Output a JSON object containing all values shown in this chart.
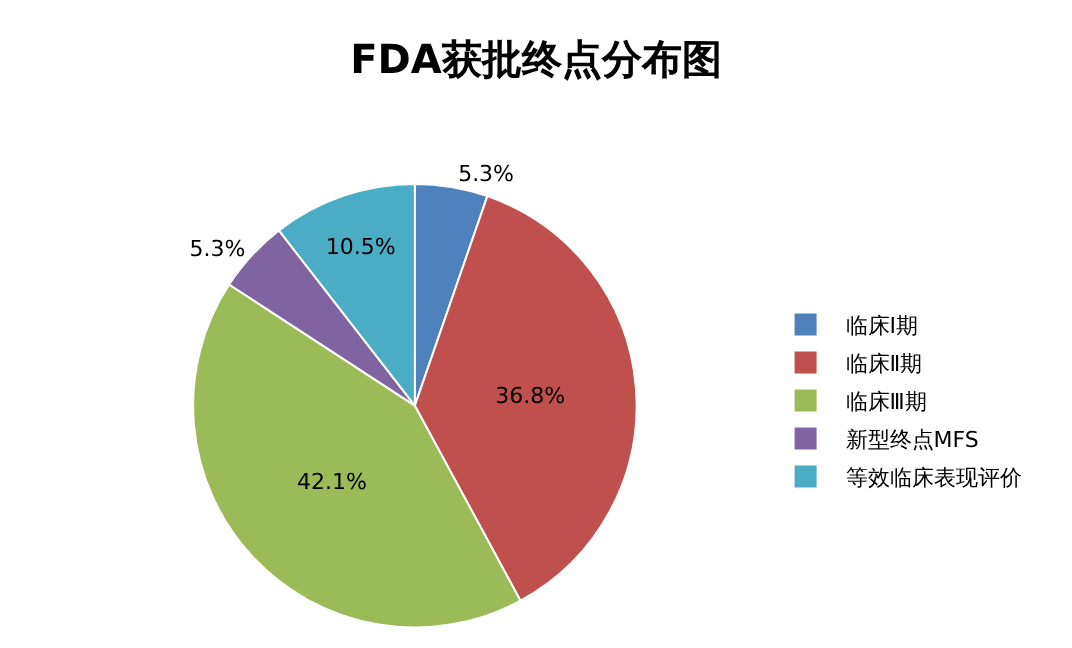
{
  "chart_data": {
    "type": "pie",
    "title": "FDA获批终点分布图",
    "categories": [
      "临床Ⅰ期",
      "临床Ⅱ期",
      "临床Ⅲ期",
      "新型终点MFS",
      "等效临床表现评价"
    ],
    "values": [
      5.3,
      36.8,
      42.1,
      5.3,
      10.5
    ],
    "value_labels": [
      "5.3%",
      "36.8%",
      "42.1%",
      "5.3%",
      "10.5%"
    ],
    "colors": [
      "#4f81bd",
      "#c0504d",
      "#9bbb59",
      "#8064a2",
      "#4bacc6"
    ],
    "legend": "right"
  }
}
